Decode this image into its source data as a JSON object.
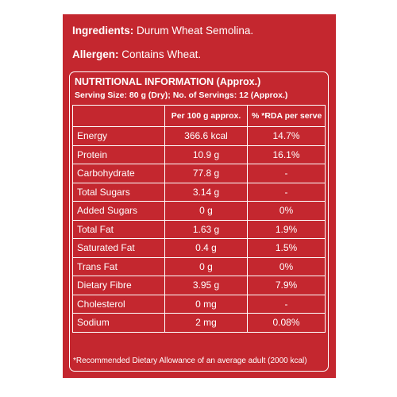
{
  "ingredients": {
    "label": "Ingredients:",
    "value": "Durum Wheat Semolina."
  },
  "allergen": {
    "label": "Allergen:",
    "value": "Contains Wheat."
  },
  "nutrition": {
    "title": "NUTRITIONAL INFORMATION (Approx.)",
    "serving": "Serving Size: 80 g (Dry);  No. of Servings: 12 (Approx.)",
    "headers": [
      "",
      "Per 100 g approx.",
      "% *RDA per serve"
    ],
    "rows": [
      {
        "name": "Energy",
        "per100": "366.6 kcal",
        "rda": "14.7%"
      },
      {
        "name": "Protein",
        "per100": "10.9 g",
        "rda": "16.1%"
      },
      {
        "name": "Carbohydrate",
        "per100": "77.8 g",
        "rda": "-"
      },
      {
        "name": "Total Sugars",
        "per100": "3.14 g",
        "rda": "-"
      },
      {
        "name": "Added Sugars",
        "per100": "0 g",
        "rda": "0%"
      },
      {
        "name": "Total Fat",
        "per100": "1.63 g",
        "rda": "1.9%"
      },
      {
        "name": "Saturated Fat",
        "per100": "0.4 g",
        "rda": "1.5%"
      },
      {
        "name": "Trans Fat",
        "per100": "0 g",
        "rda": "0%"
      },
      {
        "name": "Dietary Fibre",
        "per100": "3.95 g",
        "rda": "7.9%"
      },
      {
        "name": "Cholesterol",
        "per100": "0 mg",
        "rda": "-"
      },
      {
        "name": "Sodium",
        "per100": "2 mg",
        "rda": "0.08%"
      }
    ],
    "footnote": "*Recommended Dietary Allowance of an average adult (2000 kcal)"
  },
  "colors": {
    "background": "#c4272f",
    "text": "#ffffff"
  }
}
